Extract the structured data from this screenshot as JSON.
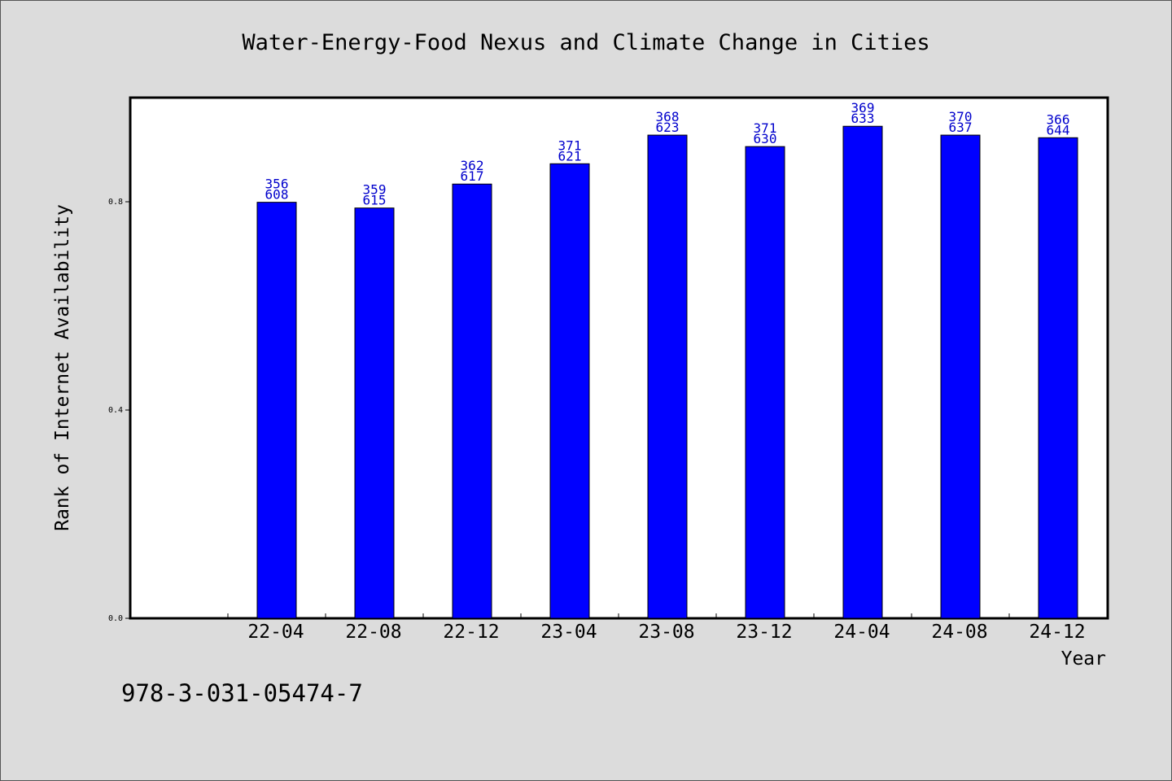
{
  "colors": {
    "background": "#dcdcdc",
    "plot_background": "#ffffff",
    "bar": "#0000ff",
    "data_label": "#0000cc",
    "text": "#000000"
  },
  "chart_data": {
    "type": "bar",
    "title": "Water-Energy-Food Nexus and Climate Change in Cities",
    "xlabel": "Year",
    "ylabel": "Rank of Internet Availability",
    "categories": [
      "22-04",
      "22-08",
      "22-12",
      "23-04",
      "23-08",
      "23-12",
      "24-04",
      "24-08",
      "24-12"
    ],
    "values": [
      0.799,
      0.788,
      0.834,
      0.873,
      0.928,
      0.906,
      0.945,
      0.928,
      0.923
    ],
    "labels_top": [
      "356",
      "359",
      "362",
      "371",
      "368",
      "371",
      "369",
      "370",
      "366"
    ],
    "labels_bottom": [
      "608",
      "615",
      "617",
      "621",
      "623",
      "630",
      "633",
      "637",
      "644"
    ],
    "yticks": [
      0.0,
      0.4,
      0.8
    ],
    "ytick_labels": [
      "0.0",
      "0.4",
      "0.8"
    ],
    "ylim": [
      0,
      1.0
    ],
    "grid": false,
    "legend": "none"
  },
  "footer_text": "978-3-031-05474-7"
}
